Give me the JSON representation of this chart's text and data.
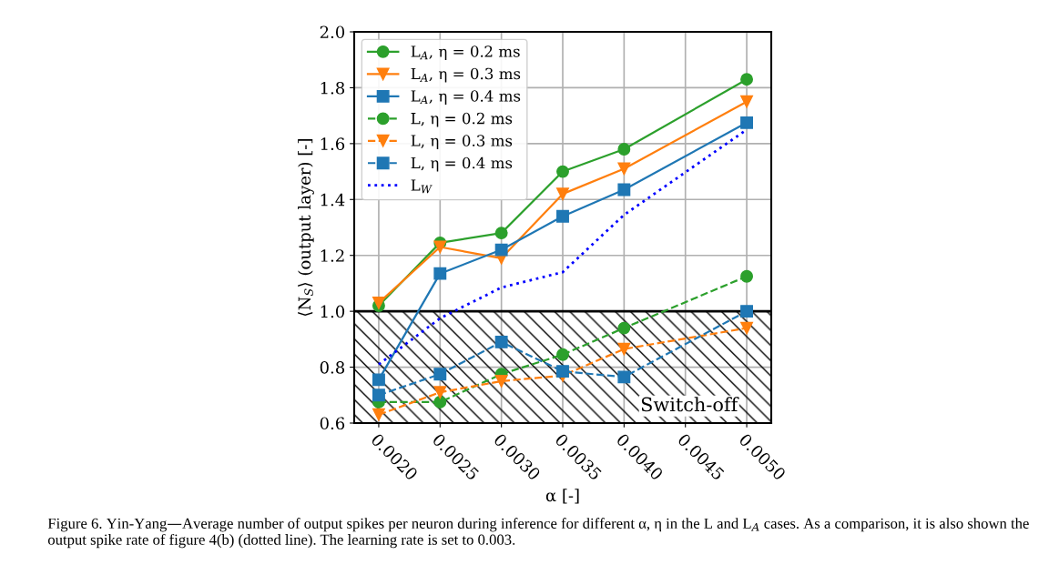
{
  "chart_data": {
    "type": "line",
    "xlabel": "α [-]",
    "ylabel": "⟨N$_{S}$⟩ (output layer) [-]",
    "x": [
      0.002,
      0.0025,
      0.003,
      0.0035,
      0.004,
      0.005
    ],
    "series": [
      {
        "name": "L$_{A}$, η = 0.2 ms",
        "color": "#2ca02c",
        "marker": "circle",
        "line_style": "solid",
        "values": [
          1.02,
          1.245,
          1.28,
          1.5,
          1.58,
          1.83
        ]
      },
      {
        "name": "L$_{A}$, η = 0.3 ms",
        "color": "#ff7f0e",
        "marker": "triangle",
        "line_style": "solid",
        "values": [
          1.03,
          1.23,
          1.19,
          1.42,
          1.51,
          1.75
        ]
      },
      {
        "name": "L$_{A}$, η = 0.4 ms",
        "color": "#1f77b4",
        "marker": "square",
        "line_style": "solid",
        "values": [
          0.755,
          1.135,
          1.22,
          1.34,
          1.435,
          1.675
        ]
      },
      {
        "name": "L, η = 0.2 ms",
        "color": "#2ca02c",
        "marker": "circle",
        "line_style": "dashed",
        "values": [
          0.675,
          0.675,
          0.775,
          0.845,
          0.94,
          1.125
        ]
      },
      {
        "name": "L, η = 0.3 ms",
        "color": "#ff7f0e",
        "marker": "triangle",
        "line_style": "dashed",
        "values": [
          0.63,
          0.71,
          0.75,
          0.77,
          0.865,
          0.94
        ]
      },
      {
        "name": "L, η = 0.4 ms",
        "color": "#1f77b4",
        "marker": "square",
        "line_style": "dashed",
        "values": [
          0.7,
          0.775,
          0.89,
          0.785,
          0.765,
          1.0
        ]
      },
      {
        "name": "L$_{W}$",
        "color": "#0000ff",
        "marker": "none",
        "line_style": "dotted",
        "values": [
          0.81,
          0.975,
          1.085,
          1.14,
          1.345,
          1.65
        ]
      }
    ],
    "xlim": [
      0.0018,
      0.0052
    ],
    "xticks": [
      {
        "value": 0.002,
        "label": "0.0020"
      },
      {
        "value": 0.0025,
        "label": "0.0025"
      },
      {
        "value": 0.003,
        "label": "0.0030"
      },
      {
        "value": 0.0035,
        "label": "0.0035"
      },
      {
        "value": 0.004,
        "label": "0.0040"
      },
      {
        "value": 0.0045,
        "label": "0.0045"
      },
      {
        "value": 0.005,
        "label": "0.0050"
      }
    ],
    "ylim": [
      0.6,
      2.0
    ],
    "yticks": [
      {
        "value": 0.6,
        "label": "0.6"
      },
      {
        "value": 0.8,
        "label": "0.8"
      },
      {
        "value": 1.0,
        "label": "1.0"
      },
      {
        "value": 1.2,
        "label": "1.2"
      },
      {
        "value": 1.4,
        "label": "1.4"
      },
      {
        "value": 1.6,
        "label": "1.6"
      },
      {
        "value": 1.8,
        "label": "1.8"
      },
      {
        "value": 2.0,
        "label": "2.0"
      }
    ],
    "ref_lines": [
      {
        "axis": "y",
        "value": 1.0,
        "color": "#000000",
        "line_style": "solid"
      }
    ],
    "bands": [
      {
        "axis": "y",
        "from": 0.6,
        "to": 1.0,
        "label": "Switch-off"
      }
    ],
    "grid": true,
    "legend": "top left",
    "annotations": [
      "Figure 6. Yin-Yang—Average number of output spikes per neuron during inference for different α, η in the L and L$_{A}$ cases. As a comparison, it is also shown the output spike rate of figure 4(b) (dotted line). The learning rate is set to 0.003."
    ]
  }
}
